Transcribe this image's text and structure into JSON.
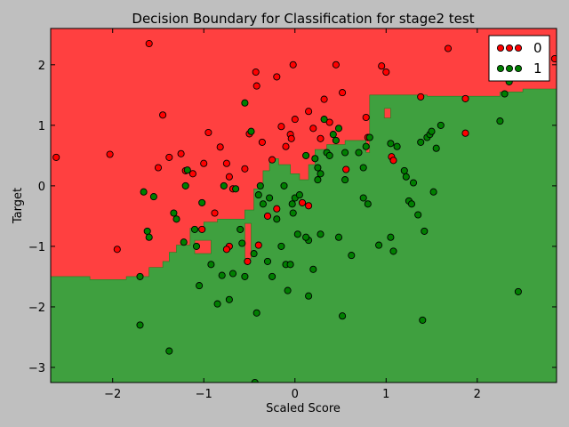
{
  "chart_data": {
    "type": "scatter",
    "title": "Decision Boundary for Classification for stage2 test",
    "xlabel": "Scaled Score",
    "ylabel": "Target",
    "xlim": [
      -2.68,
      2.87
    ],
    "ylim": [
      -3.25,
      2.6
    ],
    "xticks": [
      -2,
      -1,
      0,
      1,
      2
    ],
    "yticks": [
      -3,
      -2,
      -1,
      0,
      1,
      2
    ],
    "grid": false,
    "legend_position": "top-right",
    "region_colors": {
      "0": "#ff4040",
      "1": "#3fa03f"
    },
    "series": [
      {
        "name": "0",
        "color": "#ff0000",
        "points": [
          [
            -2.62,
            0.47
          ],
          [
            -2.03,
            0.52
          ],
          [
            -1.95,
            -1.05
          ],
          [
            -1.6,
            2.35
          ],
          [
            -1.5,
            0.3
          ],
          [
            -1.45,
            1.17
          ],
          [
            -1.38,
            0.47
          ],
          [
            -1.25,
            0.53
          ],
          [
            -1.2,
            0.25
          ],
          [
            -1.12,
            0.2
          ],
          [
            -1.0,
            0.37
          ],
          [
            -0.95,
            0.88
          ],
          [
            -0.88,
            -0.45
          ],
          [
            -0.82,
            0.64
          ],
          [
            -0.75,
            0.37
          ],
          [
            -0.72,
            0.15
          ],
          [
            -0.68,
            -0.05
          ],
          [
            -0.55,
            0.28
          ],
          [
            -0.5,
            0.86
          ],
          [
            -0.43,
            1.88
          ],
          [
            -0.42,
            1.65
          ],
          [
            -0.36,
            0.72
          ],
          [
            -0.3,
            -0.5
          ],
          [
            -0.25,
            0.43
          ],
          [
            -0.2,
            1.8
          ],
          [
            -0.15,
            0.98
          ],
          [
            -0.1,
            0.65
          ],
          [
            -0.05,
            0.85
          ],
          [
            -0.04,
            0.78
          ],
          [
            -0.02,
            2.0
          ],
          [
            0.0,
            1.1
          ],
          [
            0.08,
            -0.28
          ],
          [
            0.15,
            1.23
          ],
          [
            0.2,
            0.95
          ],
          [
            0.28,
            0.78
          ],
          [
            0.32,
            1.43
          ],
          [
            0.38,
            1.05
          ],
          [
            0.45,
            2.0
          ],
          [
            0.52,
            1.54
          ],
          [
            0.56,
            0.27
          ],
          [
            0.78,
            1.13
          ],
          [
            0.8,
            0.8
          ],
          [
            0.95,
            1.98
          ],
          [
            1.0,
            1.88
          ],
          [
            1.06,
            0.48
          ],
          [
            1.08,
            0.42
          ],
          [
            1.38,
            1.47
          ],
          [
            1.68,
            2.27
          ],
          [
            1.87,
            1.44
          ],
          [
            1.87,
            0.87
          ],
          [
            2.35,
            1.88
          ],
          [
            2.85,
            2.1
          ],
          [
            -1.02,
            -0.72
          ],
          [
            -0.72,
            -1.0
          ],
          [
            -0.75,
            -1.05
          ],
          [
            -0.52,
            -1.25
          ],
          [
            -0.4,
            -0.98
          ],
          [
            -0.2,
            -0.38
          ],
          [
            0.15,
            -0.33
          ]
        ]
      },
      {
        "name": "1",
        "color": "#007f00",
        "points": [
          [
            -1.7,
            -1.5
          ],
          [
            -1.7,
            -2.3
          ],
          [
            -1.66,
            -0.1
          ],
          [
            -1.62,
            -0.75
          ],
          [
            -1.6,
            -0.85
          ],
          [
            -1.55,
            -0.18
          ],
          [
            -1.38,
            -2.73
          ],
          [
            -1.33,
            -0.45
          ],
          [
            -1.3,
            -0.55
          ],
          [
            -1.22,
            -0.93
          ],
          [
            -1.2,
            0.0
          ],
          [
            -1.18,
            0.26
          ],
          [
            -1.1,
            -0.72
          ],
          [
            -1.08,
            -1.0
          ],
          [
            -1.05,
            -1.65
          ],
          [
            -1.02,
            -0.28
          ],
          [
            -0.92,
            -1.3
          ],
          [
            -0.85,
            -1.95
          ],
          [
            -0.8,
            -1.48
          ],
          [
            -0.78,
            0.0
          ],
          [
            -0.72,
            -1.88
          ],
          [
            -0.68,
            -1.45
          ],
          [
            -0.65,
            -0.05
          ],
          [
            -0.6,
            -0.72
          ],
          [
            -0.58,
            -0.95
          ],
          [
            -0.55,
            1.37
          ],
          [
            -0.55,
            -1.5
          ],
          [
            -0.48,
            0.9
          ],
          [
            -0.45,
            -1.12
          ],
          [
            -0.44,
            -3.25
          ],
          [
            -0.42,
            -2.1
          ],
          [
            -0.4,
            -0.15
          ],
          [
            -0.38,
            0.0
          ],
          [
            -0.35,
            -0.3
          ],
          [
            -0.3,
            -1.25
          ],
          [
            -0.28,
            -0.2
          ],
          [
            -0.25,
            -1.5
          ],
          [
            -0.2,
            -0.55
          ],
          [
            -0.15,
            -1.0
          ],
          [
            -0.12,
            0.0
          ],
          [
            -0.1,
            -1.3
          ],
          [
            -0.08,
            -1.73
          ],
          [
            -0.05,
            -1.3
          ],
          [
            -0.03,
            -0.3
          ],
          [
            -0.02,
            -0.45
          ],
          [
            0.0,
            -0.2
          ],
          [
            0.03,
            -0.8
          ],
          [
            0.05,
            -0.15
          ],
          [
            0.12,
            0.5
          ],
          [
            0.15,
            -0.9
          ],
          [
            0.15,
            -1.82
          ],
          [
            0.2,
            -1.38
          ],
          [
            0.22,
            0.45
          ],
          [
            0.25,
            0.3
          ],
          [
            0.25,
            0.1
          ],
          [
            0.28,
            0.2
          ],
          [
            0.28,
            -0.8
          ],
          [
            0.32,
            1.1
          ],
          [
            0.35,
            0.55
          ],
          [
            0.38,
            0.5
          ],
          [
            0.42,
            0.85
          ],
          [
            0.45,
            0.75
          ],
          [
            0.48,
            -0.85
          ],
          [
            0.52,
            -2.15
          ],
          [
            0.55,
            0.1
          ],
          [
            0.55,
            0.55
          ],
          [
            0.62,
            -1.15
          ],
          [
            0.7,
            0.55
          ],
          [
            0.75,
            -0.2
          ],
          [
            0.75,
            0.3
          ],
          [
            0.78,
            0.65
          ],
          [
            0.8,
            -0.3
          ],
          [
            0.82,
            0.8
          ],
          [
            0.92,
            -0.98
          ],
          [
            1.05,
            -0.85
          ],
          [
            1.05,
            0.7
          ],
          [
            1.08,
            -1.08
          ],
          [
            1.12,
            0.65
          ],
          [
            1.2,
            0.25
          ],
          [
            1.22,
            0.15
          ],
          [
            1.25,
            -0.25
          ],
          [
            1.28,
            -0.3
          ],
          [
            1.3,
            0.05
          ],
          [
            1.35,
            -0.48
          ],
          [
            1.38,
            0.72
          ],
          [
            1.4,
            -2.22
          ],
          [
            1.42,
            -0.75
          ],
          [
            1.45,
            0.8
          ],
          [
            1.48,
            0.85
          ],
          [
            1.5,
            0.9
          ],
          [
            1.52,
            -0.1
          ],
          [
            1.55,
            0.62
          ],
          [
            1.6,
            1.0
          ],
          [
            2.25,
            1.07
          ],
          [
            2.3,
            1.52
          ],
          [
            2.35,
            1.72
          ],
          [
            2.45,
            -1.75
          ],
          [
            0.48,
            0.95
          ],
          [
            0.12,
            -0.85
          ]
        ]
      }
    ]
  }
}
